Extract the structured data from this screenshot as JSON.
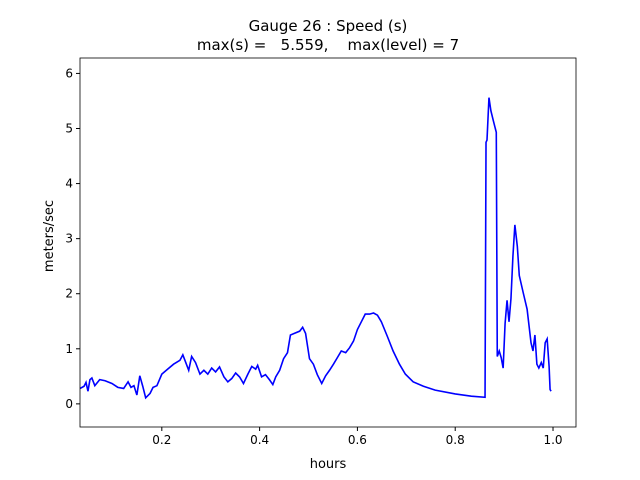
{
  "chart_data": {
    "type": "line",
    "title": "Gauge 26 : Speed (s)",
    "subtitle": "max(s) =   5.559,    max(level) = 7",
    "xlabel": "hours",
    "ylabel": "meters/sec",
    "xlim": [
      0.0327,
      1.047
    ],
    "ylim": [
      -0.42,
      6.28
    ],
    "xticks": [
      0.2,
      0.4,
      0.6,
      0.8,
      {
        "value": 1.0,
        "label": "1.0"
      }
    ],
    "yticks": [
      0,
      1,
      2,
      3,
      4,
      5,
      6
    ],
    "series": [
      {
        "name": "Speed",
        "color": "#0000ff",
        "x": [
          0.033,
          0.041,
          0.045,
          0.049,
          0.053,
          0.057,
          0.063,
          0.073,
          0.084,
          0.098,
          0.11,
          0.122,
          0.131,
          0.137,
          0.143,
          0.149,
          0.155,
          0.161,
          0.167,
          0.176,
          0.182,
          0.19,
          0.2,
          0.212,
          0.224,
          0.237,
          0.243,
          0.249,
          0.255,
          0.261,
          0.269,
          0.278,
          0.286,
          0.294,
          0.302,
          0.31,
          0.318,
          0.327,
          0.335,
          0.343,
          0.351,
          0.359,
          0.367,
          0.376,
          0.384,
          0.392,
          0.396,
          0.404,
          0.412,
          0.42,
          0.427,
          0.433,
          0.441,
          0.449,
          0.457,
          0.463,
          0.471,
          0.482,
          0.488,
          0.494,
          0.502,
          0.51,
          0.518,
          0.527,
          0.535,
          0.543,
          0.551,
          0.559,
          0.567,
          0.576,
          0.584,
          0.592,
          0.6,
          0.608,
          0.616,
          0.625,
          0.633,
          0.641,
          0.649,
          0.661,
          0.673,
          0.686,
          0.698,
          0.714,
          0.735,
          0.759,
          0.8,
          0.833,
          0.861,
          0.863,
          0.865,
          0.869,
          0.873,
          0.878,
          0.882,
          0.884,
          0.886,
          0.89,
          0.894,
          0.898,
          0.902,
          0.906,
          0.91,
          0.914,
          0.918,
          0.922,
          0.927,
          0.931,
          0.939,
          0.947,
          0.955,
          0.959,
          0.963,
          0.967,
          0.971,
          0.976,
          0.98,
          0.984,
          0.988,
          0.992,
          0.994,
          0.996
        ],
        "values": [
          0.28,
          0.32,
          0.39,
          0.23,
          0.44,
          0.47,
          0.33,
          0.44,
          0.42,
          0.37,
          0.3,
          0.28,
          0.4,
          0.3,
          0.33,
          0.16,
          0.51,
          0.32,
          0.11,
          0.19,
          0.3,
          0.33,
          0.54,
          0.63,
          0.72,
          0.79,
          0.89,
          0.75,
          0.61,
          0.86,
          0.75,
          0.54,
          0.61,
          0.54,
          0.65,
          0.58,
          0.67,
          0.49,
          0.4,
          0.46,
          0.56,
          0.49,
          0.37,
          0.54,
          0.68,
          0.63,
          0.7,
          0.49,
          0.53,
          0.44,
          0.35,
          0.49,
          0.61,
          0.82,
          0.93,
          1.25,
          1.28,
          1.32,
          1.39,
          1.28,
          0.82,
          0.72,
          0.53,
          0.37,
          0.51,
          0.61,
          0.72,
          0.84,
          0.96,
          0.93,
          1.02,
          1.14,
          1.35,
          1.49,
          1.63,
          1.63,
          1.65,
          1.61,
          1.49,
          1.23,
          0.96,
          0.72,
          0.54,
          0.4,
          0.32,
          0.25,
          0.18,
          0.14,
          0.12,
          4.75,
          4.79,
          5.56,
          5.32,
          5.14,
          5.0,
          4.93,
          0.86,
          0.96,
          0.84,
          0.65,
          1.46,
          1.88,
          1.49,
          1.91,
          2.68,
          3.25,
          2.86,
          2.33,
          2.02,
          1.72,
          1.11,
          0.96,
          1.25,
          0.72,
          0.65,
          0.75,
          0.65,
          1.11,
          1.18,
          0.68,
          0.26,
          0.23
        ]
      }
    ]
  }
}
